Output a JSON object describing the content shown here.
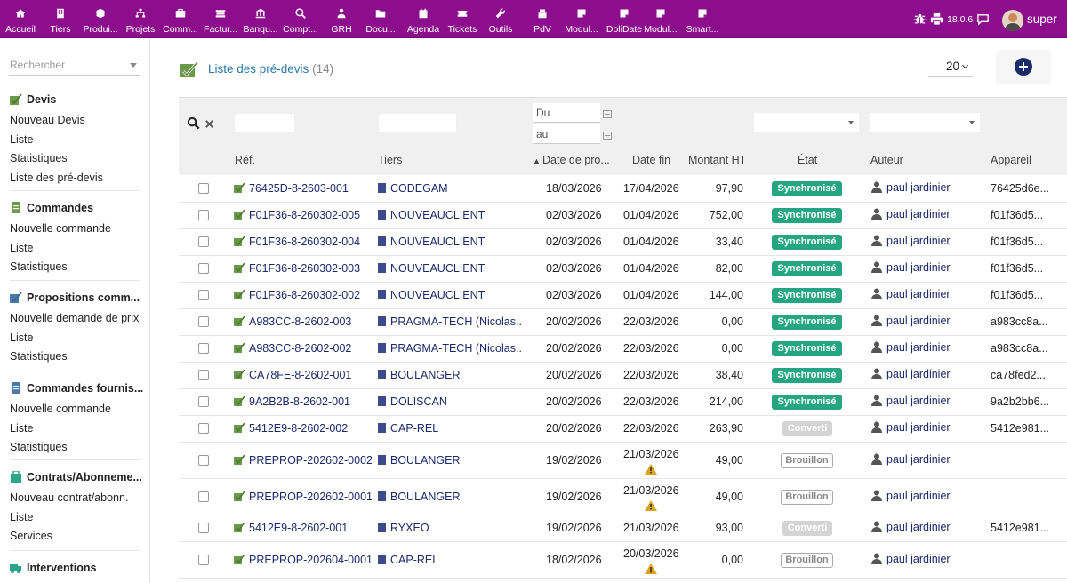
{
  "topbar": {
    "items": [
      {
        "label": "Accueil",
        "icon": "home-icon"
      },
      {
        "label": "Tiers",
        "icon": "building-icon"
      },
      {
        "label": "Produi...",
        "icon": "cube-icon"
      },
      {
        "label": "Projets",
        "icon": "sitemap-icon"
      },
      {
        "label": "Comm...",
        "icon": "briefcase-icon"
      },
      {
        "label": "Factur...",
        "icon": "money-icon"
      },
      {
        "label": "Banqu...",
        "icon": "bank-icon"
      },
      {
        "label": "Compt...",
        "icon": "search-dollar-icon"
      },
      {
        "label": "GRH",
        "icon": "users-icon"
      },
      {
        "label": "Docu...",
        "icon": "folder-open-icon"
      },
      {
        "label": "Agenda",
        "icon": "calendar-icon"
      },
      {
        "label": "Tickets",
        "icon": "ticket-icon"
      },
      {
        "label": "Outils",
        "icon": "wrench-icon"
      },
      {
        "label": "PdV",
        "icon": "cash-register-icon"
      },
      {
        "label": "Modul...",
        "icon": "note-icon"
      },
      {
        "label": "DoliDate",
        "icon": "note-icon"
      },
      {
        "label": "Modul...",
        "icon": "note-icon"
      },
      {
        "label": "Smart...",
        "icon": "note-icon"
      }
    ],
    "version": "18.0.6",
    "username": "super"
  },
  "sidebar": {
    "search_placeholder": "Rechercher",
    "sections": [
      {
        "title": "Devis",
        "links": [
          "Nouveau Devis",
          "Liste",
          "Statistiques",
          "Liste des pré-devis"
        ]
      },
      {
        "title": "Commandes",
        "links": [
          "Nouvelle commande",
          "Liste",
          "Statistiques"
        ]
      },
      {
        "title": "Propositions comm...",
        "links": [
          "Nouvelle demande de prix",
          "Liste",
          "Statistiques"
        ]
      },
      {
        "title": "Commandes fournis...",
        "links": [
          "Nouvelle commande",
          "Liste",
          "Statistiques"
        ]
      },
      {
        "title": "Contrats/Abonneme...",
        "links": [
          "Nouveau contrat/abonn.",
          "Liste",
          "Services"
        ]
      },
      {
        "title": "Interventions",
        "links": []
      }
    ]
  },
  "main": {
    "title": "Liste des pré-devis",
    "count": "(14)",
    "limit": "20",
    "filters": {
      "date_from": "Du",
      "date_to": "au"
    },
    "columns": [
      "Réf.",
      "Tiers",
      "Date de pro...",
      "Date fin",
      "Montant HT",
      "État",
      "Auteur",
      "Appareil"
    ],
    "rows": [
      {
        "ref": "76425D-8-2603-001",
        "tiers": "CODEGAM",
        "date": "18/03/2026",
        "date_fin": "17/04/2026",
        "montant": "97,90",
        "etat": "Synchronisé",
        "etat_type": "sync",
        "auteur": "paul jardinier",
        "appareil": "76425d6e...",
        "warn": false
      },
      {
        "ref": "F01F36-8-260302-005",
        "tiers": "NOUVEAUCLIENT",
        "date": "02/03/2026",
        "date_fin": "01/04/2026",
        "montant": "752,00",
        "etat": "Synchronisé",
        "etat_type": "sync",
        "auteur": "paul jardinier",
        "appareil": "f01f36d5...",
        "warn": false
      },
      {
        "ref": "F01F36-8-260302-004",
        "tiers": "NOUVEAUCLIENT",
        "date": "02/03/2026",
        "date_fin": "01/04/2026",
        "montant": "33,40",
        "etat": "Synchronisé",
        "etat_type": "sync",
        "auteur": "paul jardinier",
        "appareil": "f01f36d5...",
        "warn": false
      },
      {
        "ref": "F01F36-8-260302-003",
        "tiers": "NOUVEAUCLIENT",
        "date": "02/03/2026",
        "date_fin": "01/04/2026",
        "montant": "82,00",
        "etat": "Synchronisé",
        "etat_type": "sync",
        "auteur": "paul jardinier",
        "appareil": "f01f36d5...",
        "warn": false
      },
      {
        "ref": "F01F36-8-260302-002",
        "tiers": "NOUVEAUCLIENT",
        "date": "02/03/2026",
        "date_fin": "01/04/2026",
        "montant": "144,00",
        "etat": "Synchronisé",
        "etat_type": "sync",
        "auteur": "paul jardinier",
        "appareil": "f01f36d5...",
        "warn": false
      },
      {
        "ref": "A983CC-8-2602-003",
        "tiers": "PRAGMA-TECH (Nicolas...",
        "date": "20/02/2026",
        "date_fin": "22/03/2026",
        "montant": "0,00",
        "etat": "Synchronisé",
        "etat_type": "sync",
        "auteur": "paul jardinier",
        "appareil": "a983cc8a...",
        "warn": false
      },
      {
        "ref": "A983CC-8-2602-002",
        "tiers": "PRAGMA-TECH (Nicolas...",
        "date": "20/02/2026",
        "date_fin": "22/03/2026",
        "montant": "0,00",
        "etat": "Synchronisé",
        "etat_type": "sync",
        "auteur": "paul jardinier",
        "appareil": "a983cc8a...",
        "warn": false
      },
      {
        "ref": "CA78FE-8-2602-001",
        "tiers": "BOULANGER",
        "date": "20/02/2026",
        "date_fin": "22/03/2026",
        "montant": "38,40",
        "etat": "Synchronisé",
        "etat_type": "sync",
        "auteur": "paul jardinier",
        "appareil": "ca78fed2...",
        "warn": false
      },
      {
        "ref": "9A2B2B-8-2602-001",
        "tiers": "DOLISCAN",
        "date": "20/02/2026",
        "date_fin": "22/03/2026",
        "montant": "214,00",
        "etat": "Synchronisé",
        "etat_type": "sync",
        "auteur": "paul jardinier",
        "appareil": "9a2b2bb6...",
        "warn": false
      },
      {
        "ref": "5412E9-8-2602-002",
        "tiers": "CAP-REL",
        "date": "20/02/2026",
        "date_fin": "22/03/2026",
        "montant": "263,90",
        "etat": "Converti",
        "etat_type": "conv",
        "auteur": "paul jardinier",
        "appareil": "5412e981...",
        "warn": false
      },
      {
        "ref": "PREPROP-202602-0002",
        "tiers": "BOULANGER",
        "date": "19/02/2026",
        "date_fin": "21/03/2026",
        "montant": "49,00",
        "etat": "Brouillon",
        "etat_type": "brou",
        "auteur": "paul jardinier",
        "appareil": "",
        "warn": true
      },
      {
        "ref": "PREPROP-202602-0001",
        "tiers": "BOULANGER",
        "date": "19/02/2026",
        "date_fin": "21/03/2026",
        "montant": "49,00",
        "etat": "Brouillon",
        "etat_type": "brou",
        "auteur": "paul jardinier",
        "appareil": "",
        "warn": true
      },
      {
        "ref": "5412E9-8-2602-001",
        "tiers": "RYXEO",
        "date": "19/02/2026",
        "date_fin": "21/03/2026",
        "montant": "93,00",
        "etat": "Converti",
        "etat_type": "conv",
        "auteur": "paul jardinier",
        "appareil": "5412e981...",
        "warn": false
      },
      {
        "ref": "PREPROP-202604-0001",
        "tiers": "CAP-REL",
        "date": "18/02/2026",
        "date_fin": "20/03/2026",
        "montant": "0,00",
        "etat": "Brouillon",
        "etat_type": "brou",
        "auteur": "paul jardinier",
        "appareil": "",
        "warn": true
      }
    ]
  },
  "colors": {
    "topbar": "#8c0e8c",
    "link": "#1b2a6b",
    "sync": "#25a580",
    "title": "#2a7aa8"
  }
}
